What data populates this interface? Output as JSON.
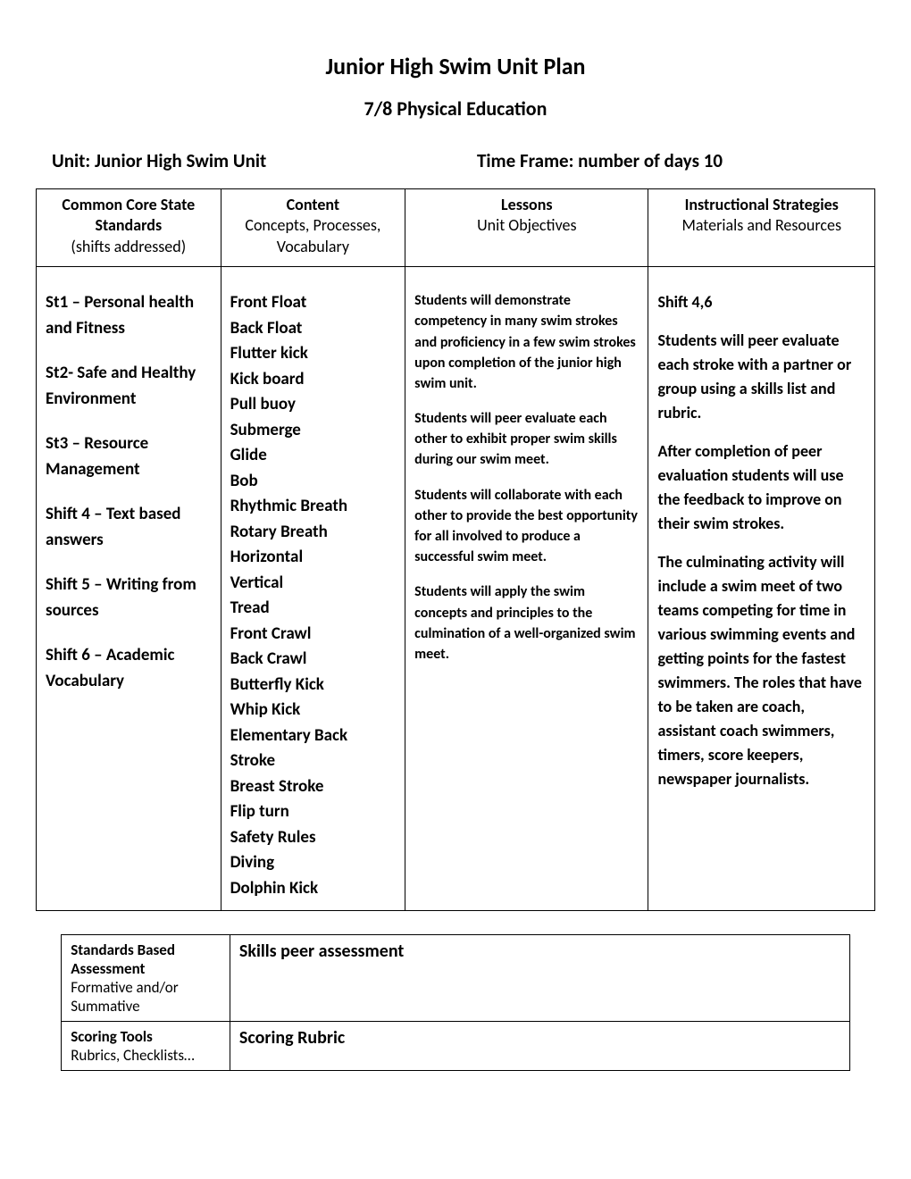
{
  "title": "Junior High Swim Unit Plan",
  "subtitle": "7/8 Physical Education",
  "unit_label": "Unit: Junior High Swim Unit",
  "time_frame": "Time Frame: number of days 10",
  "table": {
    "headers": {
      "col1_line1": "Common Core State",
      "col1_line2": "Standards",
      "col1_line3": "(shifts addressed)",
      "col2_line1": "Content",
      "col2_line2": "Concepts, Processes,",
      "col2_line3": "Vocabulary",
      "col3_line1": "Lessons",
      "col3_line2": "Unit Objectives",
      "col4_line1": "Instructional Strategies",
      "col4_line2": "Materials and Resources"
    },
    "standards": [
      "St1 – Personal health and Fitness",
      "St2- Safe and Healthy Environment",
      "St3 – Resource Management",
      "Shift 4 – Text based answers",
      "Shift 5 – Writing from sources",
      "Shift 6 – Academic Vocabulary"
    ],
    "content": [
      "Front Float",
      "Back Float",
      "Flutter kick",
      "Kick board",
      "Pull buoy",
      "Submerge",
      "Glide",
      "Bob",
      "Rhythmic Breath",
      "Rotary Breath",
      "Horizontal",
      "Vertical",
      "Tread",
      "Front Crawl",
      "Back Crawl",
      "Butterfly Kick",
      "Whip Kick",
      "Elementary Back Stroke",
      "Breast Stroke",
      "Flip turn",
      "Safety Rules",
      "Diving",
      "Dolphin Kick"
    ],
    "objectives": [
      "Students will demonstrate competency in many swim strokes and proficiency in a few swim strokes upon completion of the junior high swim unit.",
      "Students will peer evaluate each other to exhibit proper swim skills during our swim meet.",
      "Students will collaborate with each other to provide the best opportunity for all involved to produce a successful swim meet.",
      "Students will apply the swim concepts and principles to the culmination of a well-organized swim meet."
    ],
    "strategies": [
      "Shift 4,6",
      "Students will peer evaluate each stroke with a partner or group using a skills list and rubric.",
      "After completion of peer evaluation students will use the feedback to improve on their swim strokes.",
      "The culminating activity will include a swim meet of two teams competing for time in various swimming events and getting points for the fastest swimmers.  The roles that have to be taken are coach, assistant coach swimmers, timers, score keepers, newspaper journalists."
    ]
  },
  "assessment": {
    "row1_label_bold": "Standards Based Assessment",
    "row1_label_plain": "Formative and/or Summative",
    "row1_value": "Skills peer assessment",
    "row2_label_bold": "Scoring Tools",
    "row2_label_plain": "Rubrics, Checklists…",
    "row2_value": "Scoring Rubric"
  },
  "colors": {
    "text": "#000000",
    "background": "#ffffff",
    "border": "#000000"
  },
  "fonts": {
    "family": "Calibri, Arial, sans-serif",
    "title_size_pt": 20,
    "subtitle_size_pt": 16,
    "meta_size_pt": 16,
    "header_size_pt": 13,
    "body_bold_size_pt": 14,
    "objectives_size_pt": 12
  }
}
